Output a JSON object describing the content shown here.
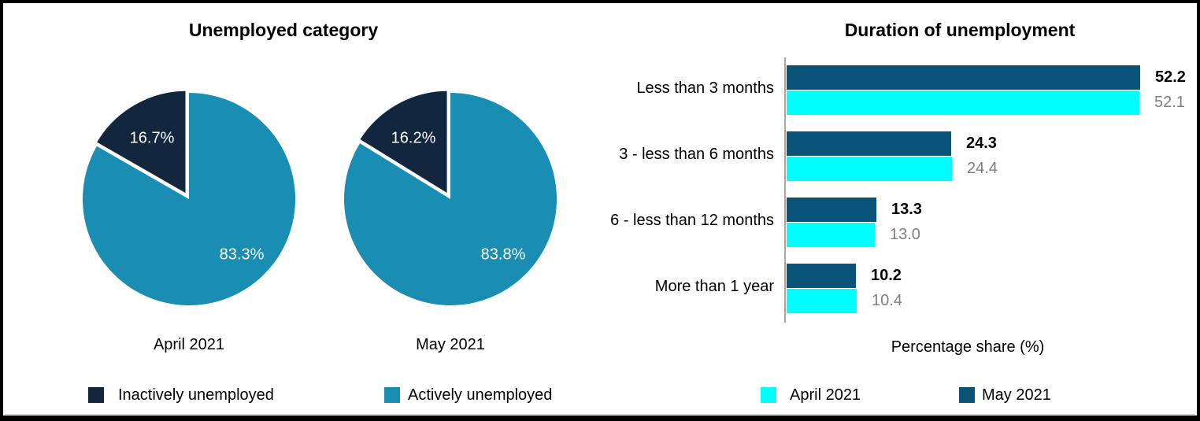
{
  "chart_data": [
    {
      "type": "pie",
      "title": "Unemployed category",
      "legend_position": "bottom",
      "colors": {
        "inactive": "#12263e",
        "active": "#1a8db3"
      },
      "legend": [
        {
          "label": "Inactively unemployed",
          "color": "#12263e"
        },
        {
          "label": "Actively unemployed",
          "color": "#1a8db3"
        }
      ],
      "pies": [
        {
          "category": "April 2021",
          "values": {
            "inactive": 16.7,
            "active": 83.3
          },
          "labels": {
            "inactive": "16.7%",
            "active": "83.3%"
          }
        },
        {
          "category": "May 2021",
          "values": {
            "inactive": 16.2,
            "active": 83.8
          },
          "labels": {
            "inactive": "16.2%",
            "active": "83.8%"
          }
        }
      ]
    },
    {
      "type": "bar",
      "orientation": "horizontal",
      "title": "Duration of unemployment",
      "xlabel": "Percentage share (%)",
      "xlim": [
        0,
        55
      ],
      "grid": false,
      "legend_position": "bottom",
      "categories": [
        "Less than 3 months",
        "3 - less than 6 months",
        "6 - less than 12 months",
        "More than 1 year"
      ],
      "series": [
        {
          "name": "May 2021",
          "color": "#085377",
          "values": [
            52.2,
            24.3,
            13.3,
            10.2
          ]
        },
        {
          "name": "April 2021",
          "color": "#00ffff",
          "values": [
            52.1,
            24.4,
            13.0,
            10.4
          ]
        }
      ],
      "legend": [
        {
          "label": "April 2021",
          "color": "#00ffff"
        },
        {
          "label": "May 2021",
          "color": "#085377"
        }
      ]
    }
  ]
}
